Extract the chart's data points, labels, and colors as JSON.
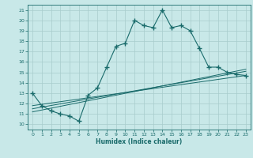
{
  "xlabel": "Humidex (Indice chaleur)",
  "xlim": [
    -0.5,
    23.5
  ],
  "ylim": [
    9.5,
    21.5
  ],
  "yticks": [
    10,
    11,
    12,
    13,
    14,
    15,
    16,
    17,
    18,
    19,
    20,
    21
  ],
  "xticks": [
    0,
    1,
    2,
    3,
    4,
    5,
    6,
    7,
    8,
    9,
    10,
    11,
    12,
    13,
    14,
    15,
    16,
    17,
    18,
    19,
    20,
    21,
    22,
    23
  ],
  "bg_color": "#c8e8e8",
  "line_color": "#1a6b6b",
  "grid_color": "#a8cccc",
  "main_x": [
    0,
    1,
    2,
    3,
    4,
    5,
    6,
    7,
    8,
    9,
    10,
    11,
    12,
    13,
    14,
    15,
    16,
    17,
    18,
    19,
    20,
    21,
    22,
    23
  ],
  "main_y": [
    13.0,
    11.8,
    11.3,
    11.0,
    10.8,
    10.3,
    12.8,
    13.5,
    15.5,
    17.5,
    17.8,
    20.0,
    19.5,
    19.3,
    21.0,
    19.3,
    19.5,
    19.0,
    17.3,
    15.5,
    15.5,
    15.0,
    14.8,
    14.7
  ],
  "line2_x": [
    0,
    23
  ],
  "line2_y": [
    11.2,
    15.3
  ],
  "line3_x": [
    0,
    23
  ],
  "line3_y": [
    11.5,
    15.1
  ],
  "line4_x": [
    0,
    23
  ],
  "line4_y": [
    11.8,
    14.7
  ]
}
